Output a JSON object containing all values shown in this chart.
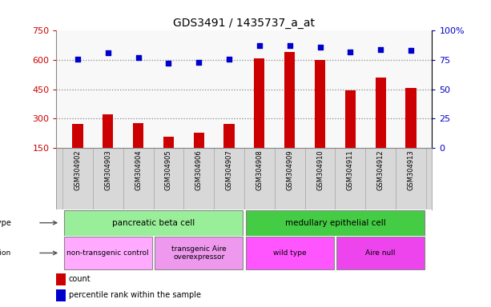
{
  "title": "GDS3491 / 1435737_a_at",
  "samples": [
    "GSM304902",
    "GSM304903",
    "GSM304904",
    "GSM304905",
    "GSM304906",
    "GSM304907",
    "GSM304908",
    "GSM304909",
    "GSM304910",
    "GSM304911",
    "GSM304912",
    "GSM304913"
  ],
  "counts": [
    270,
    320,
    275,
    205,
    225,
    270,
    610,
    640,
    600,
    445,
    510,
    455
  ],
  "percentile_ranks": [
    76,
    81,
    77,
    72,
    73,
    76,
    87,
    87,
    86,
    82,
    84,
    83
  ],
  "ylim_left": [
    150,
    750
  ],
  "ylim_right": [
    0,
    100
  ],
  "yticks_left": [
    150,
    300,
    450,
    600,
    750
  ],
  "yticks_right": [
    0,
    25,
    50,
    75,
    100
  ],
  "bar_color": "#cc0000",
  "dot_color": "#0000cc",
  "cell_type_groups": [
    {
      "label": "pancreatic beta cell",
      "start": 0,
      "end": 6,
      "color": "#99ee99"
    },
    {
      "label": "medullary epithelial cell",
      "start": 6,
      "end": 12,
      "color": "#44cc44"
    }
  ],
  "genotype_groups": [
    {
      "label": "non-transgenic control",
      "start": 0,
      "end": 3,
      "color": "#ffaaff"
    },
    {
      "label": "transgenic Aire\noverexpressor",
      "start": 3,
      "end": 6,
      "color": "#ee99ee"
    },
    {
      "label": "wild type",
      "start": 6,
      "end": 9,
      "color": "#ff55ff"
    },
    {
      "label": "Aire null",
      "start": 9,
      "end": 12,
      "color": "#ee44ee"
    }
  ]
}
